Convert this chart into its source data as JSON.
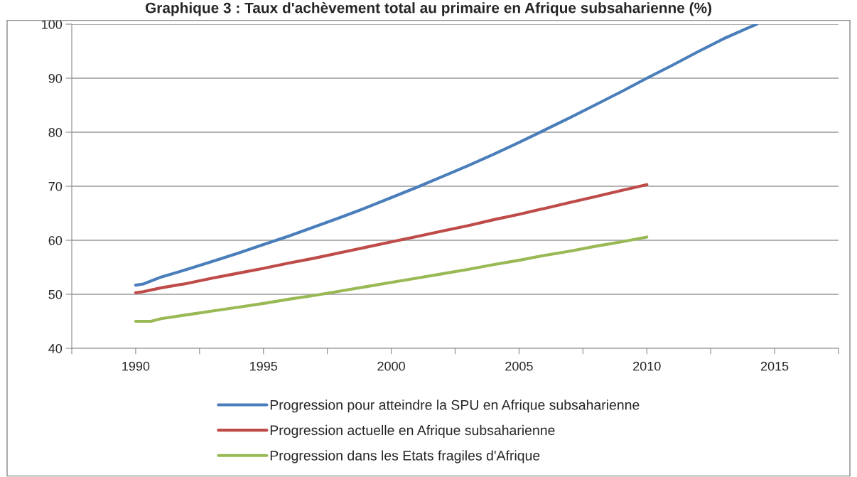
{
  "chart_data": {
    "type": "line",
    "title": "Graphique 3 : Taux d'achèvement total au primaire en Afrique subsaharienne (%)",
    "series": [
      {
        "name": "Progression pour atteindre la SPU en Afrique subsaharienne",
        "color": "#4a7ebb",
        "x": [
          1990,
          1990.3,
          1991,
          1992,
          1993,
          1994,
          1995,
          1996,
          1997,
          1998,
          1999,
          2000,
          2001,
          2002,
          2003,
          2004,
          2005,
          2006,
          2007,
          2008,
          2009,
          2010,
          2011,
          2012,
          2013,
          2014,
          2014.3
        ],
        "values": [
          51.7,
          51.9,
          53.2,
          54.6,
          56.1,
          57.6,
          59.2,
          60.8,
          62.5,
          64.2,
          66.0,
          67.9,
          69.8,
          71.8,
          73.8,
          75.9,
          78.1,
          80.4,
          82.7,
          85.1,
          87.5,
          90.0,
          92.4,
          94.9,
          97.3,
          99.4,
          100
        ]
      },
      {
        "name": "Progression actuelle en Afrique subsaharienne",
        "color": "#be4b48",
        "x": [
          1990,
          1990.3,
          1991,
          1992,
          1993,
          1994,
          1995,
          1996,
          1997,
          1998,
          1999,
          2000,
          2001,
          2002,
          2003,
          2004,
          2005,
          2006,
          2007,
          2008,
          2009,
          2010
        ],
        "values": [
          50.3,
          50.5,
          51.2,
          52.0,
          53.0,
          53.9,
          54.8,
          55.8,
          56.7,
          57.7,
          58.7,
          59.7,
          60.7,
          61.7,
          62.7,
          63.8,
          64.8,
          65.9,
          67.0,
          68.1,
          69.2,
          70.3
        ]
      },
      {
        "name": "Progression dans les Etats fragiles d'Afrique",
        "color": "#98b954",
        "x": [
          1990,
          1990.6,
          1991,
          1992,
          1993,
          1994,
          1995,
          1996,
          1997,
          1998,
          1999,
          2000,
          2001,
          2002,
          2003,
          2004,
          2005,
          2006,
          2007,
          2008,
          2009,
          2010
        ],
        "values": [
          45.0,
          45.0,
          45.5,
          46.2,
          46.9,
          47.6,
          48.3,
          49.1,
          49.8,
          50.6,
          51.4,
          52.2,
          53.0,
          53.8,
          54.6,
          55.5,
          56.3,
          57.2,
          58.0,
          58.9,
          59.7,
          60.6
        ]
      }
    ],
    "xlim": [
      1987.5,
      2017.5
    ],
    "xticks": [
      {
        "value": 1987.5,
        "label": null
      },
      1990,
      {
        "value": 1992.5,
        "label": null
      },
      1995,
      {
        "value": 1997.5,
        "label": null
      },
      2000,
      {
        "value": 2002.5,
        "label": null
      },
      2005,
      {
        "value": 2007.5,
        "label": null
      },
      2010,
      {
        "value": 2012.5,
        "label": null
      },
      2015,
      {
        "value": 2017.5,
        "label": null
      }
    ],
    "ylim": [
      40,
      100
    ],
    "yticks": [
      40,
      50,
      60,
      70,
      80,
      90,
      100
    ],
    "grid": "y",
    "legend": "bottom",
    "line_style": "solid",
    "marker": "none"
  }
}
